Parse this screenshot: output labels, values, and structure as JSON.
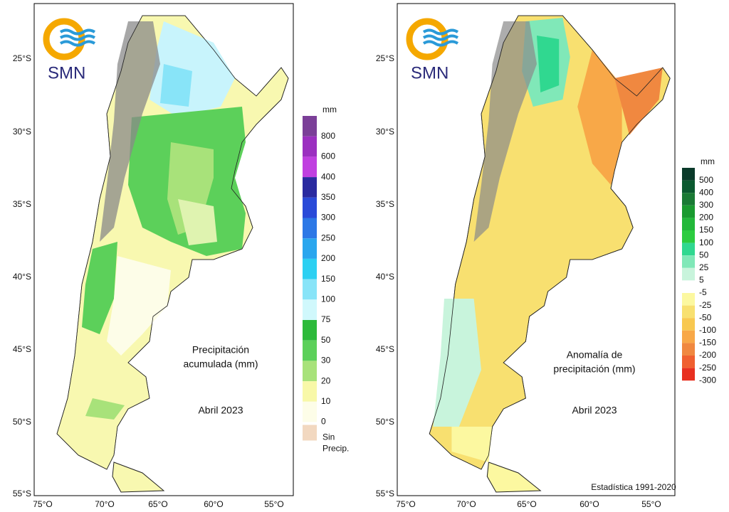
{
  "panels": [
    {
      "logo": "SMN",
      "title_lines": [
        "Precipitación",
        "acumulada (mm)"
      ],
      "month": "Abril 2023",
      "lat_labels": [
        "25°S",
        "30°S",
        "35°S",
        "40°S",
        "45°S",
        "50°S",
        "55°S"
      ],
      "lon_labels": [
        "75°O",
        "70°O",
        "65°O",
        "60°O",
        "55°O"
      ],
      "legend": {
        "unit": "mm",
        "items": [
          {
            "label": "800",
            "color": "#7b3f98"
          },
          {
            "label": "600",
            "color": "#9b30c0"
          },
          {
            "label": "400",
            "color": "#c040e0"
          },
          {
            "label": "350",
            "color": "#2a2aa0"
          },
          {
            "label": "300",
            "color": "#2a4ad8"
          },
          {
            "label": "250",
            "color": "#2d78e6"
          },
          {
            "label": "200",
            "color": "#2aa6ee"
          },
          {
            "label": "150",
            "color": "#2cd0f2"
          },
          {
            "label": "100",
            "color": "#88e4f8"
          },
          {
            "label": "75",
            "color": "#d0f8fc"
          },
          {
            "label": "50",
            "color": "#2dba3a"
          },
          {
            "label": "30",
            "color": "#5cd05a"
          },
          {
            "label": "20",
            "color": "#a8e27a"
          },
          {
            "label": "10",
            "color": "#f8f8a8"
          },
          {
            "label": "0",
            "color": "#fdfde8"
          }
        ],
        "no_precip": {
          "lines": [
            "Sin",
            "Precip."
          ],
          "color": "#f2d8c0"
        }
      }
    },
    {
      "logo": "SMN",
      "title_lines": [
        "Anomalía de",
        "precipitación (mm)"
      ],
      "month": "Abril 2023",
      "note": "Estadística 1991-2020",
      "lat_labels": [
        "25°S",
        "30°S",
        "35°S",
        "40°S",
        "45°S",
        "50°S",
        "55°S"
      ],
      "lon_labels": [
        "75°O",
        "70°O",
        "65°O",
        "60°O",
        "55°O"
      ],
      "legend": {
        "unit": "mm",
        "items": [
          {
            "label": "500",
            "color": "#0a3a2a"
          },
          {
            "label": "400",
            "color": "#0b5a30"
          },
          {
            "label": "300",
            "color": "#1a7a35"
          },
          {
            "label": "200",
            "color": "#1a9a30"
          },
          {
            "label": "150",
            "color": "#22b83a"
          },
          {
            "label": "100",
            "color": "#2ccc40"
          },
          {
            "label": "50",
            "color": "#30d890"
          },
          {
            "label": "25",
            "color": "#80e8b8"
          },
          {
            "label": "5",
            "color": "#c8f4dc"
          },
          {
            "label": "-5",
            "color": "#ffffff"
          },
          {
            "label": "-25",
            "color": "#fcf8a0"
          },
          {
            "label": "-50",
            "color": "#f8e070"
          },
          {
            "label": "-100",
            "color": "#f8c850"
          },
          {
            "label": "-150",
            "color": "#f8a848"
          },
          {
            "label": "-200",
            "color": "#f08840"
          },
          {
            "label": "-250",
            "color": "#f06030"
          },
          {
            "label": "-300",
            "color": "#e83020"
          }
        ]
      }
    }
  ]
}
